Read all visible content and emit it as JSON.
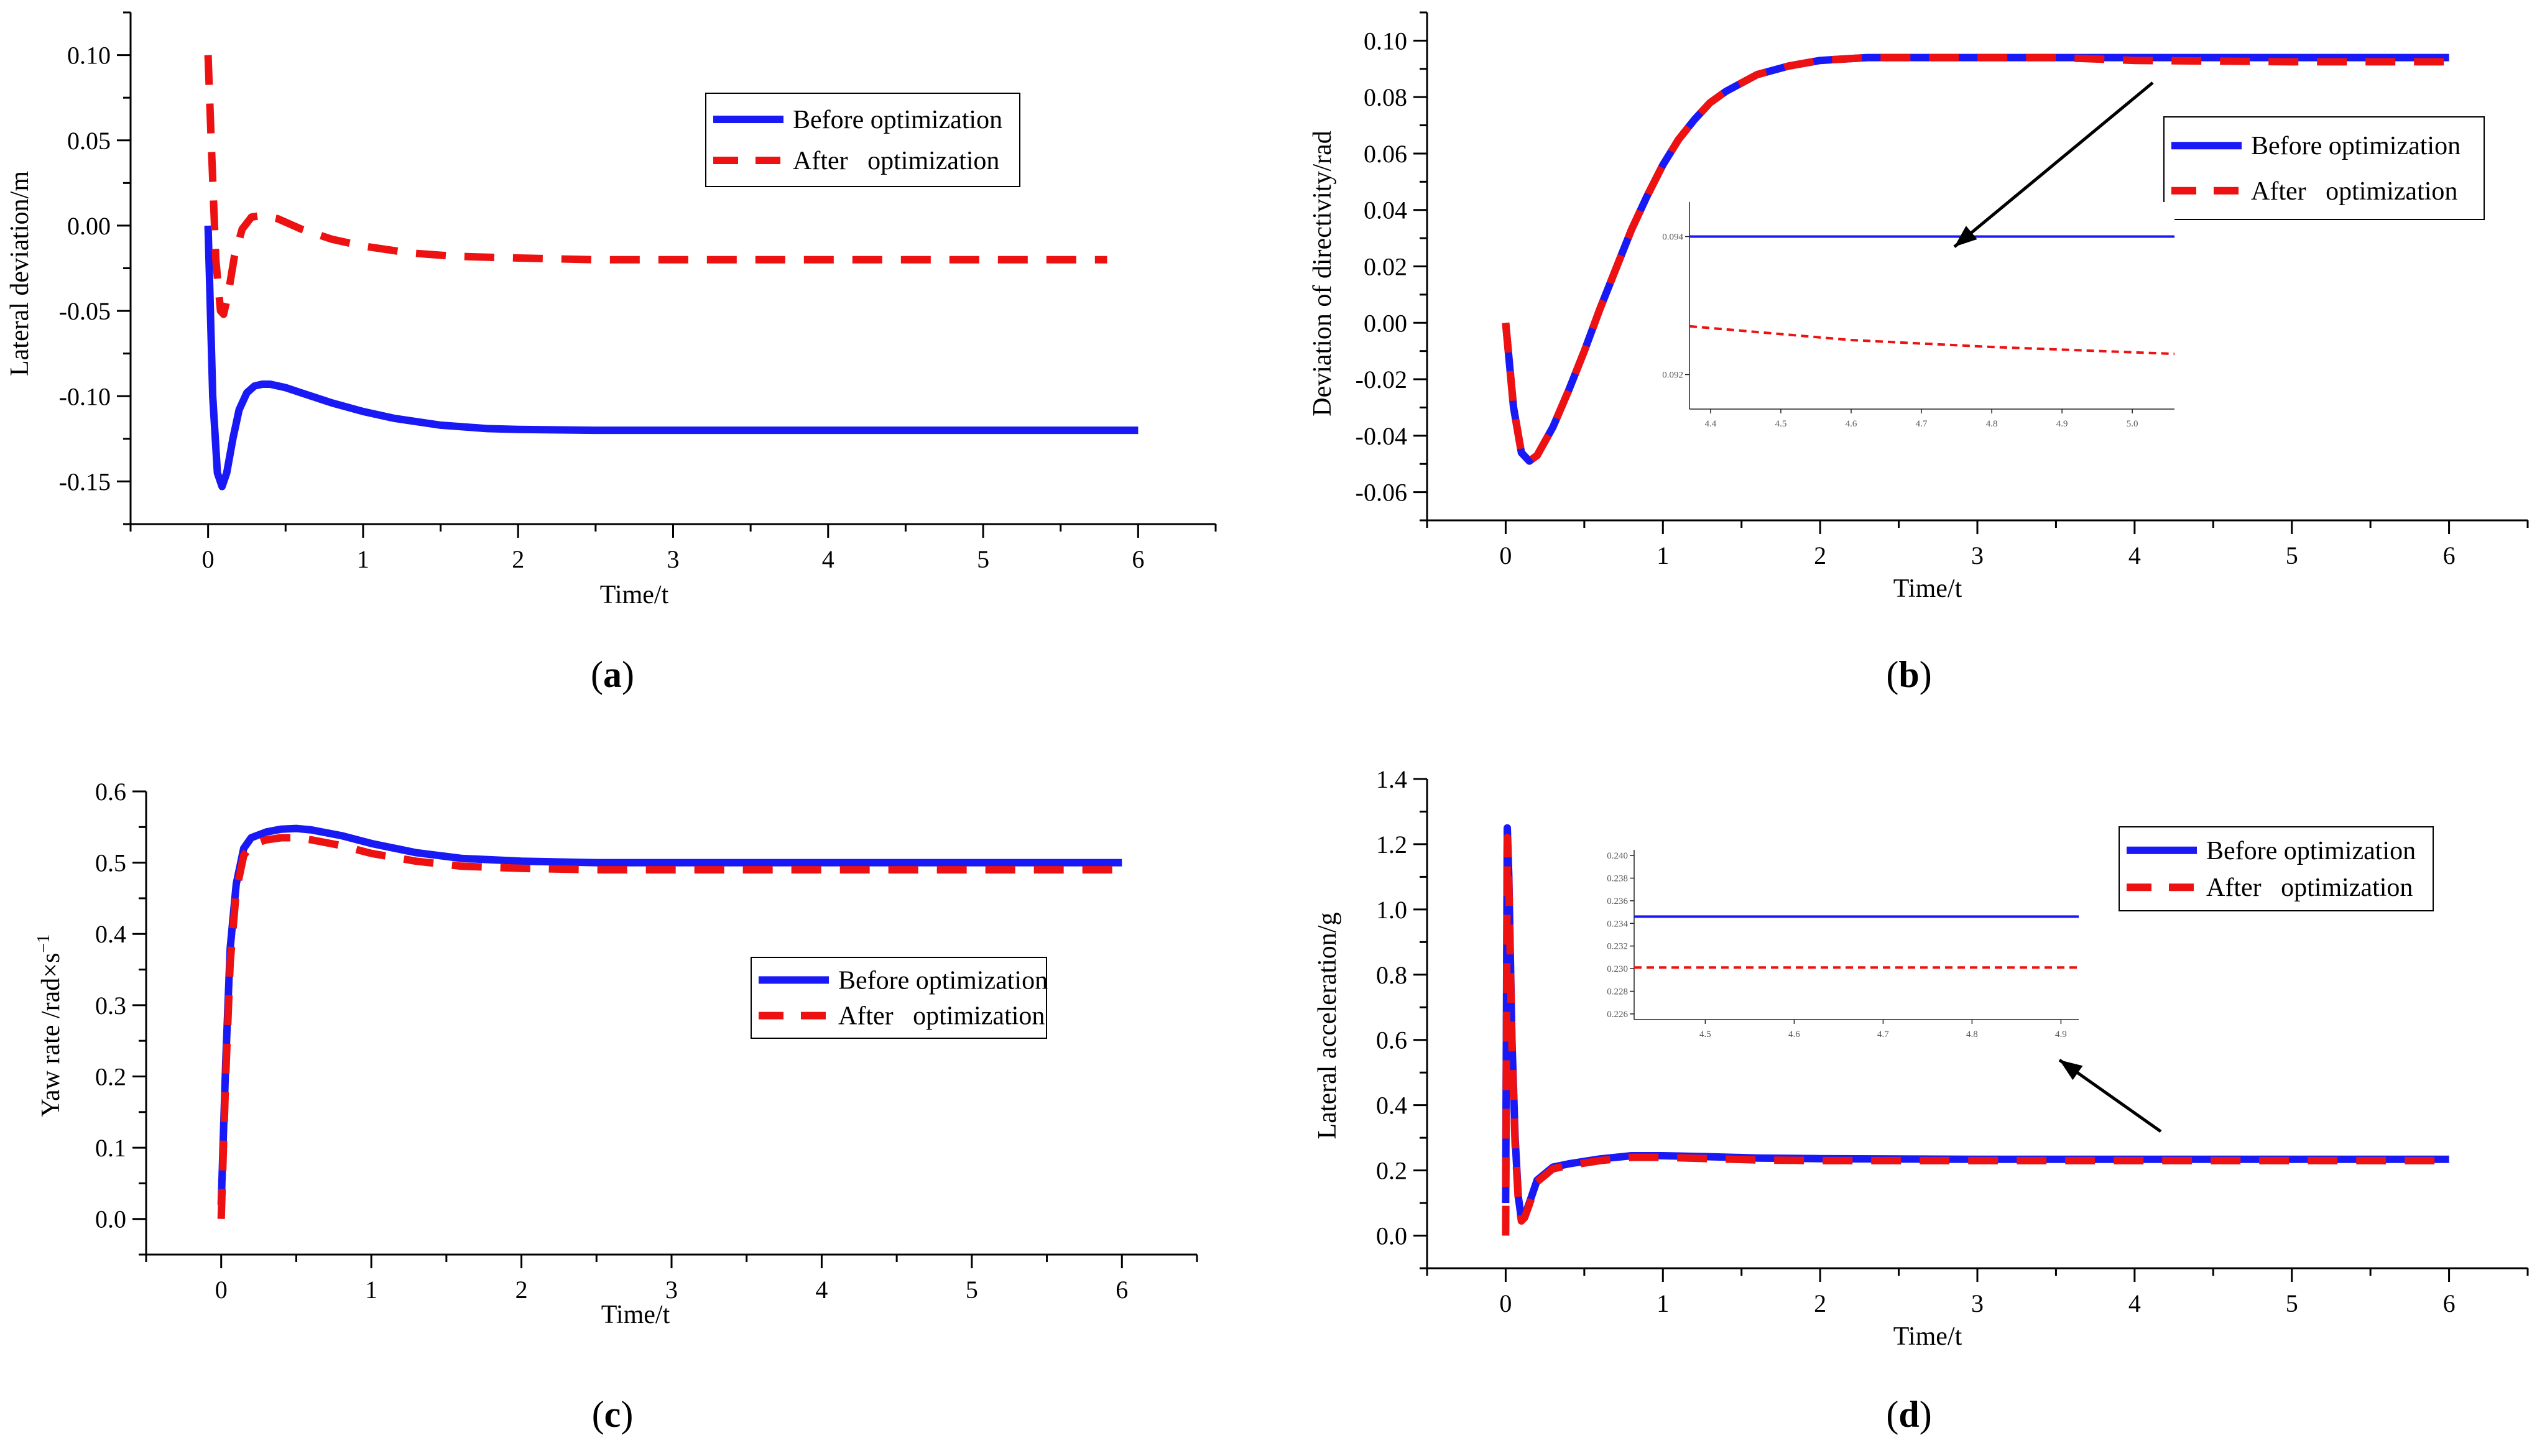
{
  "figure": {
    "panels": [
      "a",
      "b",
      "c",
      "d"
    ]
  },
  "chart_data": [
    {
      "id": "a",
      "type": "line",
      "caption": "a",
      "title": "",
      "xlabel": "Time/t",
      "ylabel": "Lateral deviation/m",
      "xlim": [
        -0.5,
        6.5
      ],
      "ylim": [
        -0.175,
        0.125
      ],
      "xticks": [
        0,
        1,
        2,
        3,
        4,
        5,
        6
      ],
      "yticks": [
        -0.15,
        -0.1,
        -0.05,
        0.0,
        0.05,
        0.1
      ],
      "ytick_labels": [
        "-0.15",
        "-0.10",
        "-0.05",
        "0.00",
        "0.05",
        "0.10"
      ],
      "legend": [
        "Before optimization",
        "After   optimization"
      ],
      "series": [
        {
          "name": "Before optimization",
          "color": "#1919f5",
          "style": "solid",
          "x": [
            0,
            0.03,
            0.06,
            0.09,
            0.12,
            0.16,
            0.2,
            0.25,
            0.3,
            0.35,
            0.4,
            0.5,
            0.6,
            0.8,
            1.0,
            1.2,
            1.5,
            1.8,
            2.0,
            2.5,
            3,
            4,
            5,
            6
          ],
          "y": [
            0.0,
            -0.1,
            -0.145,
            -0.153,
            -0.145,
            -0.125,
            -0.108,
            -0.098,
            -0.094,
            -0.093,
            -0.093,
            -0.095,
            -0.098,
            -0.104,
            -0.109,
            -0.113,
            -0.117,
            -0.119,
            -0.1195,
            -0.12,
            -0.12,
            -0.12,
            -0.12,
            -0.12
          ]
        },
        {
          "name": "After   optimization",
          "color": "#ee1111",
          "style": "dashed",
          "x": [
            0,
            0.02,
            0.05,
            0.08,
            0.1,
            0.13,
            0.17,
            0.22,
            0.28,
            0.35,
            0.45,
            0.6,
            0.8,
            1.0,
            1.3,
            1.6,
            2.0,
            2.5,
            3,
            4,
            5,
            5.8
          ],
          "y": [
            0.1,
            0.05,
            -0.02,
            -0.05,
            -0.052,
            -0.04,
            -0.018,
            -0.002,
            0.005,
            0.006,
            0.004,
            -0.002,
            -0.008,
            -0.012,
            -0.016,
            -0.018,
            -0.019,
            -0.02,
            -0.02,
            -0.02,
            -0.02,
            -0.02
          ]
        }
      ]
    },
    {
      "id": "b",
      "type": "line",
      "caption": "b",
      "title": "",
      "xlabel": "Time/t",
      "ylabel": "Deviation of directivity/rad",
      "xlim": [
        -0.5,
        6.5
      ],
      "ylim": [
        -0.07,
        0.11
      ],
      "xticks": [
        0,
        1,
        2,
        3,
        4,
        5,
        6
      ],
      "yticks": [
        -0.06,
        -0.04,
        -0.02,
        0.0,
        0.02,
        0.04,
        0.06,
        0.08,
        0.1
      ],
      "ytick_labels": [
        "-0.06",
        "-0.04",
        "-0.02",
        "0.00",
        "0.02",
        "0.04",
        "0.06",
        "0.08",
        "0.10"
      ],
      "legend": [
        "Before optimization",
        "After   optimization"
      ],
      "series": [
        {
          "name": "Before optimization",
          "color": "#1919f5",
          "style": "solid",
          "x": [
            0,
            0.05,
            0.1,
            0.15,
            0.2,
            0.3,
            0.4,
            0.5,
            0.6,
            0.7,
            0.8,
            0.9,
            1.0,
            1.1,
            1.2,
            1.3,
            1.4,
            1.6,
            1.8,
            2.0,
            2.3,
            2.6,
            3,
            4,
            5,
            6
          ],
          "y": [
            0.0,
            -0.03,
            -0.046,
            -0.049,
            -0.047,
            -0.037,
            -0.024,
            -0.01,
            0.005,
            0.019,
            0.033,
            0.045,
            0.056,
            0.065,
            0.072,
            0.078,
            0.082,
            0.088,
            0.091,
            0.093,
            0.094,
            0.094,
            0.094,
            0.094,
            0.094,
            0.094
          ]
        },
        {
          "name": "After   optimization",
          "color": "#ee1111",
          "style": "dashed",
          "x": [
            0,
            0.05,
            0.1,
            0.15,
            0.2,
            0.3,
            0.4,
            0.5,
            0.6,
            0.7,
            0.8,
            0.9,
            1.0,
            1.1,
            1.2,
            1.3,
            1.4,
            1.6,
            1.8,
            2.0,
            2.3,
            2.6,
            3,
            3.5,
            4,
            5,
            6
          ],
          "y": [
            0.0,
            -0.03,
            -0.046,
            -0.049,
            -0.047,
            -0.037,
            -0.024,
            -0.01,
            0.005,
            0.019,
            0.033,
            0.045,
            0.056,
            0.065,
            0.072,
            0.078,
            0.082,
            0.088,
            0.091,
            0.093,
            0.094,
            0.094,
            0.094,
            0.094,
            0.093,
            0.0925,
            0.0925
          ]
        }
      ],
      "inset": {
        "xlim": [
          4.37,
          5.06
        ],
        "ylim": [
          0.0915,
          0.0945
        ],
        "xticks": [
          4.4,
          4.5,
          4.6,
          4.7,
          4.8,
          4.9,
          5.0
        ],
        "xtick_labels": [
          "4.4",
          "4.5",
          "4.6",
          "4.7",
          "4.8",
          "4.9",
          "5.0"
        ],
        "yticks": [
          0.092,
          0.094
        ],
        "ytick_labels": [
          "0.092",
          "0.094"
        ],
        "series": [
          {
            "color": "#1919f5",
            "style": "solid",
            "x": [
              4.37,
              5.06
            ],
            "y": [
              0.094,
              0.094
            ]
          },
          {
            "color": "#ee1111",
            "style": "dashed",
            "x": [
              4.37,
              4.6,
              4.8,
              5.06
            ],
            "y": [
              0.0927,
              0.0925,
              0.0924,
              0.0923
            ]
          }
        ]
      }
    },
    {
      "id": "c",
      "type": "line",
      "caption": "c",
      "title": "",
      "xlabel": "Time/t",
      "ylabel": "Yaw rate /rad×s−1",
      "ylabel_main": "Yaw rate /rad×s",
      "ylabel_sup": "−1",
      "xlim": [
        -0.5,
        6.5
      ],
      "ylim": [
        -0.05,
        0.6
      ],
      "xticks": [
        0,
        1,
        2,
        3,
        4,
        5,
        6
      ],
      "yticks": [
        0.0,
        0.1,
        0.2,
        0.3,
        0.4,
        0.5,
        0.6
      ],
      "ytick_labels": [
        "0.0",
        "0.1",
        "0.2",
        "0.3",
        "0.4",
        "0.5",
        "0.6"
      ],
      "legend": [
        "Before optimization",
        "After   optimization"
      ],
      "series": [
        {
          "name": "Before optimization",
          "color": "#1919f5",
          "style": "solid",
          "x": [
            0,
            0.03,
            0.06,
            0.1,
            0.15,
            0.2,
            0.3,
            0.4,
            0.5,
            0.6,
            0.8,
            1.0,
            1.3,
            1.6,
            2.0,
            2.5,
            3,
            4,
            5,
            6
          ],
          "y": [
            0.02,
            0.22,
            0.38,
            0.47,
            0.52,
            0.535,
            0.543,
            0.547,
            0.548,
            0.546,
            0.538,
            0.527,
            0.514,
            0.506,
            0.502,
            0.5,
            0.5,
            0.5,
            0.5,
            0.5
          ]
        },
        {
          "name": "After   optimization",
          "color": "#ee1111",
          "style": "dashed",
          "x": [
            0,
            0.03,
            0.06,
            0.1,
            0.15,
            0.2,
            0.3,
            0.4,
            0.5,
            0.6,
            0.8,
            1.0,
            1.3,
            1.6,
            2.0,
            2.5,
            3,
            4,
            5,
            6
          ],
          "y": [
            0.0,
            0.2,
            0.36,
            0.46,
            0.51,
            0.525,
            0.532,
            0.535,
            0.535,
            0.532,
            0.524,
            0.513,
            0.502,
            0.495,
            0.492,
            0.49,
            0.49,
            0.49,
            0.49,
            0.49
          ]
        }
      ]
    },
    {
      "id": "d",
      "type": "line",
      "caption": "d",
      "title": "",
      "xlabel": "Time/t",
      "ylabel": "Lateral acceleration/g",
      "xlim": [
        -0.5,
        6.5
      ],
      "ylim": [
        -0.1,
        1.4
      ],
      "xticks": [
        0,
        1,
        2,
        3,
        4,
        5,
        6
      ],
      "yticks": [
        0.0,
        0.2,
        0.4,
        0.6,
        0.8,
        1.0,
        1.2,
        1.4
      ],
      "ytick_labels": [
        "0.0",
        "0.2",
        "0.4",
        "0.6",
        "0.8",
        "1.0",
        "1.2",
        "1.4"
      ],
      "legend": [
        "Before optimization",
        "After   optimization"
      ],
      "series": [
        {
          "name": "Before optimization",
          "color": "#1919f5",
          "style": "solid",
          "x": [
            0,
            0.01,
            0.02,
            0.04,
            0.06,
            0.08,
            0.1,
            0.12,
            0.15,
            0.2,
            0.3,
            0.4,
            0.6,
            0.8,
            1.0,
            1.3,
            1.6,
            2,
            3,
            4,
            5,
            6
          ],
          "y": [
            0.1,
            1.25,
            1.1,
            0.6,
            0.3,
            0.12,
            0.05,
            0.06,
            0.1,
            0.17,
            0.21,
            0.22,
            0.235,
            0.245,
            0.245,
            0.242,
            0.238,
            0.236,
            0.234,
            0.234,
            0.234,
            0.234
          ]
        },
        {
          "name": "After   optimization",
          "color": "#ee1111",
          "style": "dashed",
          "x": [
            0,
            0.01,
            0.02,
            0.04,
            0.06,
            0.08,
            0.1,
            0.12,
            0.15,
            0.2,
            0.3,
            0.4,
            0.6,
            0.8,
            1.0,
            1.3,
            1.6,
            2,
            3,
            4,
            5,
            6
          ],
          "y": [
            0.0,
            1.22,
            1.08,
            0.58,
            0.28,
            0.11,
            0.045,
            0.055,
            0.095,
            0.165,
            0.205,
            0.215,
            0.23,
            0.24,
            0.24,
            0.236,
            0.232,
            0.23,
            0.23,
            0.23,
            0.23,
            0.23
          ]
        }
      ],
      "inset": {
        "xlim": [
          4.42,
          4.92
        ],
        "ylim": [
          0.2255,
          0.2405
        ],
        "xticks": [
          4.5,
          4.6,
          4.7,
          4.8,
          4.9
        ],
        "xtick_labels": [
          "4.5",
          "4.6",
          "4.7",
          "4.8",
          "4.9"
        ],
        "yticks": [
          0.226,
          0.228,
          0.23,
          0.232,
          0.234,
          0.236,
          0.238,
          0.24
        ],
        "ytick_labels": [
          "0.226",
          "0.228",
          "0.230",
          "0.232",
          "0.234",
          "0.236",
          "0.238",
          "0.240"
        ],
        "series": [
          {
            "color": "#1919f5",
            "style": "solid",
            "x": [
              4.42,
              4.92
            ],
            "y": [
              0.2346,
              0.2346
            ]
          },
          {
            "color": "#ee1111",
            "style": "dashed",
            "x": [
              4.42,
              4.92
            ],
            "y": [
              0.2301,
              0.2301
            ]
          }
        ]
      }
    }
  ]
}
